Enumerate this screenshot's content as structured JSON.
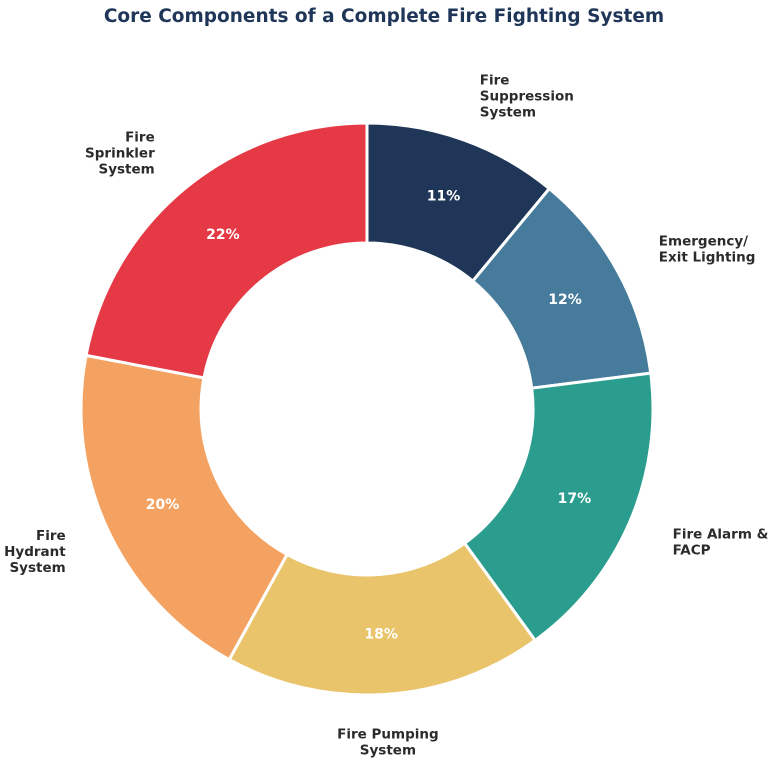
{
  "chart_data": {
    "type": "pie",
    "title": "Core Components of a Complete Fire Fighting System",
    "donut": true,
    "start": "12 o'clock, clockwise",
    "slices": [
      {
        "label": "Fire Suppression System",
        "label_lines": [
          "Fire",
          "Suppression",
          "System"
        ],
        "value": 11,
        "pct_label": "11%",
        "color": "#1f3658"
      },
      {
        "label": "Emergency/ Exit Lighting",
        "label_lines": [
          "Emergency/",
          "Exit Lighting"
        ],
        "value": 12,
        "pct_label": "12%",
        "color": "#467b9c"
      },
      {
        "label": "Fire Alarm & FACP",
        "label_lines": [
          "Fire Alarm &",
          "FACP"
        ],
        "value": 17,
        "pct_label": "17%",
        "color": "#2a9d8f"
      },
      {
        "label": "Fire Pumping System",
        "label_lines": [
          "Fire Pumping",
          "System"
        ],
        "value": 18,
        "pct_label": "18%",
        "color": "#e9c46a"
      },
      {
        "label": "Fire Hydrant System",
        "label_lines": [
          "Fire",
          "Hydrant",
          "System"
        ],
        "value": 20,
        "pct_label": "20%",
        "color": "#f4a261"
      },
      {
        "label": "Fire Sprinkler System",
        "label_lines": [
          "Fire",
          "Sprinkler",
          "System"
        ],
        "value": 22,
        "pct_label": "22%",
        "color": "#e63946"
      }
    ]
  }
}
